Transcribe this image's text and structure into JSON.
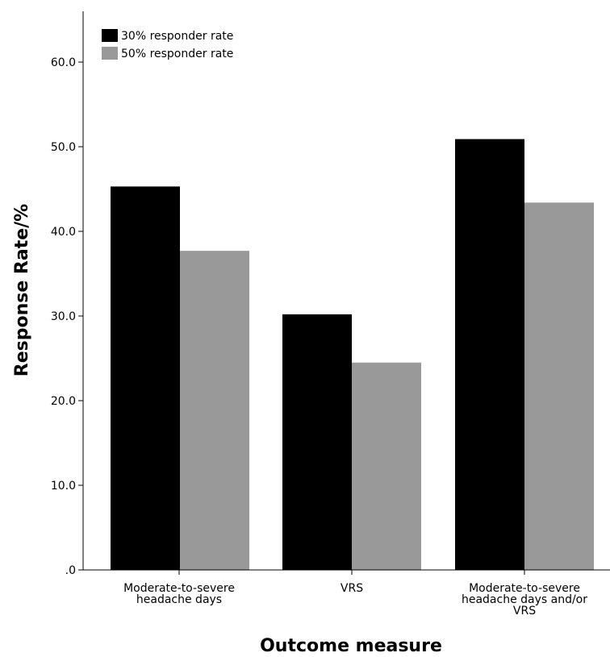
{
  "chart_data": {
    "type": "bar",
    "categories": [
      [
        "Moderate-to-severe",
        "headache days"
      ],
      [
        "VRS"
      ],
      [
        "Moderate-to-severe",
        "headache days and/or",
        "VRS"
      ]
    ],
    "series": [
      {
        "name": "30% responder rate",
        "values": [
          45.3,
          30.2,
          50.9
        ],
        "color": "#000000"
      },
      {
        "name": "50% responder rate",
        "values": [
          37.7,
          24.5,
          43.4
        ],
        "color": "#999999"
      }
    ],
    "xlabel": "Outcome measure",
    "ylabel": "Response Rate/%",
    "ylim": [
      0,
      66
    ],
    "yticks": [
      0,
      10,
      20,
      30,
      40,
      50,
      60
    ],
    "ytick_labels": [
      ".0",
      "10.0",
      "20.0",
      "30.0",
      "40.0",
      "50.0",
      "60.0"
    ],
    "legend_position": "top-left",
    "grid": false
  }
}
